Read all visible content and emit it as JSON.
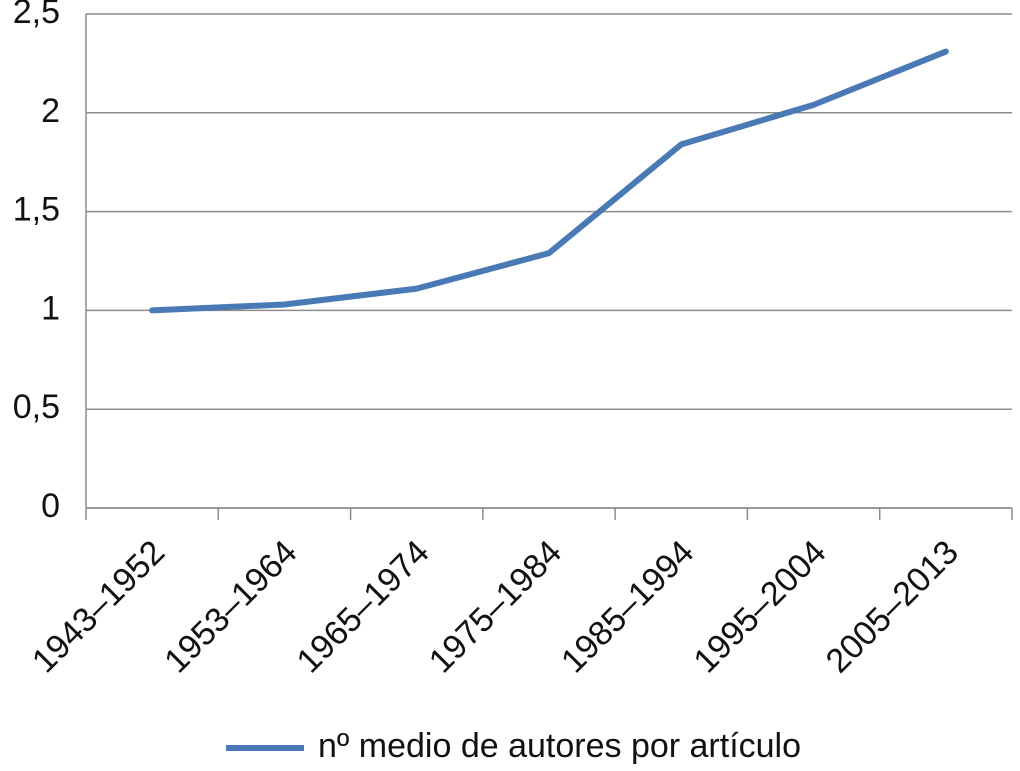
{
  "chart_data": {
    "type": "line",
    "categories": [
      "1943–1952",
      "1953–1964",
      "1965–1974",
      "1975–1984",
      "1985–1994",
      "1995–2004",
      "2005–2013"
    ],
    "series": [
      {
        "name": "nº medio de autores por artículo",
        "color": "#4a7ab5",
        "values": [
          1.0,
          1.03,
          1.11,
          1.29,
          1.84,
          2.04,
          2.31
        ]
      }
    ],
    "ylim": [
      0,
      2.5
    ],
    "yticks": [
      0,
      {
        "value": 0.5,
        "label": "0,5"
      },
      1,
      {
        "value": 1.5,
        "label": "1,5"
      },
      2,
      {
        "value": 2.5,
        "label": "2,5"
      }
    ],
    "grid": true,
    "legend": "bottom"
  }
}
